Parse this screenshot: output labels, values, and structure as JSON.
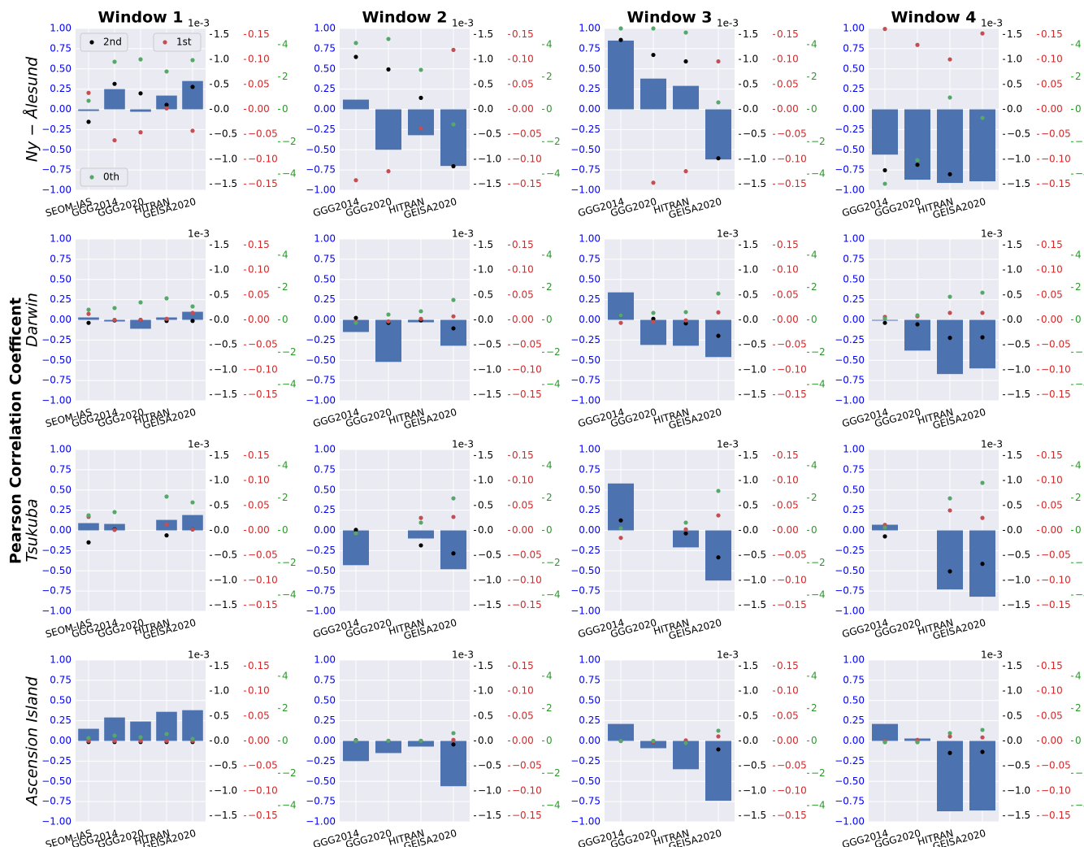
{
  "figure": {
    "column_titles": [
      "Window 1",
      "Window 2",
      "Window 3",
      "Window 4"
    ],
    "row_labels": [
      "Ny − Ålesund",
      "Darwin",
      "Tsukuba",
      "Ascension Island"
    ],
    "ylabel": "Pearson Correlation Coefficent",
    "ylim": [
      -1,
      1
    ],
    "yticks": [
      {
        "value": -1,
        "label": "−1.00"
      },
      {
        "value": -0.75,
        "label": "−0.75"
      },
      {
        "value": -0.5,
        "label": "−0.50"
      },
      {
        "value": -0.25,
        "label": "−0.25"
      },
      {
        "value": 0,
        "label": "0.00"
      },
      {
        "value": 0.25,
        "label": "0.25"
      },
      {
        "value": 0.5,
        "label": "0.50"
      },
      {
        "value": 0.75,
        "label": "0.75"
      },
      {
        "value": 1,
        "label": "1.00"
      }
    ],
    "y2lim": [
      -1.62,
      1.62
    ],
    "y2ticks": [
      {
        "value": -1.5,
        "label": "−1.5"
      },
      {
        "value": -1,
        "label": "−1.0"
      },
      {
        "value": -0.5,
        "label": "−0.5"
      },
      {
        "value": 0,
        "label": "0.0"
      },
      0.5,
      {
        "value": 1,
        "label": "1.0"
      },
      1.5
    ],
    "y2_offset_label": "1e-3",
    "y3lim": [
      -0.162,
      0.162
    ],
    "y3ticks": [
      {
        "value": -0.15,
        "label": "−0.15"
      },
      {
        "value": -0.1,
        "label": "−0.10"
      },
      {
        "value": -0.05,
        "label": "−0.05"
      },
      {
        "value": 0,
        "label": "0.00"
      },
      0.05,
      {
        "value": 0.1,
        "label": "0.10"
      },
      0.15
    ],
    "y4lim": [
      -5,
      5
    ],
    "y4ticks": [
      {
        "value": -4,
        "label": "−4"
      },
      {
        "value": -2,
        "label": "−2"
      },
      0,
      2,
      4
    ],
    "grid": true
  },
  "chart_data": [
    {
      "type": "bar",
      "categories": [
        "SEOM-IAS",
        "GGG2014",
        "GGG2020",
        "HITRAN",
        "GEISA2020"
      ],
      "color": "#4c72b0",
      "values": [
        -0.02,
        0.25,
        -0.03,
        0.17,
        0.35
      ],
      "series": [
        {
          "name": "2nd",
          "color": "#000000",
          "axis": "y2",
          "values": [
            -0.25,
            0.51,
            0.32,
            0.09,
            0.45
          ]
        },
        {
          "name": "1st",
          "color": "#c44e52",
          "axis": "y3",
          "values": [
            0.033,
            -0.062,
            -0.046,
            0.002,
            -0.043
          ]
        },
        {
          "name": "0th",
          "color": "#55a868",
          "axis": "y4",
          "values": [
            0.53,
            2.94,
            3.09,
            2.34,
            3.04
          ]
        }
      ]
    },
    {
      "type": "bar",
      "categories": [
        "GGG2014",
        "GGG2020",
        "HITRAN",
        "GEISA2020"
      ],
      "color": "#4c72b0",
      "values": [
        0.12,
        -0.5,
        -0.32,
        -0.7
      ],
      "series": [
        {
          "color": "#000000",
          "axis": "y2",
          "values": [
            1.05,
            0.8,
            0.23,
            -1.14
          ]
        },
        {
          "color": "#c44e52",
          "axis": "y3",
          "values": [
            -0.142,
            -0.124,
            -0.038,
            0.119
          ]
        },
        {
          "color": "#55a868",
          "axis": "y4",
          "values": [
            4.1,
            4.35,
            2.44,
            -0.93
          ]
        }
      ]
    },
    {
      "type": "bar",
      "categories": [
        "GGG2014",
        "GGG2020",
        "HITRAN",
        "GEISA2020"
      ],
      "color": "#4c72b0",
      "values": [
        0.85,
        0.38,
        0.29,
        -0.62
      ],
      "series": [
        {
          "color": "#000000",
          "axis": "y2",
          "values": [
            1.39,
            1.09,
            0.96,
            -0.98
          ]
        },
        {
          "color": "#c44e52",
          "axis": "y3",
          "values": [
            null,
            -0.147,
            -0.124,
            0.096
          ]
        },
        {
          "color": "#55a868",
          "axis": "y4",
          "values": [
            5.0,
            5.0,
            4.75,
            0.43
          ]
        }
      ]
    },
    {
      "type": "bar",
      "categories": [
        "GGG2014",
        "GGG2020",
        "HITRAN",
        "GEISA2020"
      ],
      "color": "#4c72b0",
      "values": [
        -0.56,
        -0.87,
        -0.91,
        -0.89
      ],
      "series": [
        {
          "color": "#000000",
          "axis": "y2",
          "values": [
            -1.22,
            -1.11,
            -1.3,
            null
          ]
        },
        {
          "color": "#c44e52",
          "axis": "y3",
          "values": [
            0.161,
            0.129,
            0.1,
            0.152
          ]
        },
        {
          "color": "#55a868",
          "axis": "y4",
          "values": [
            -4.6,
            -3.14,
            0.73,
            -0.53
          ]
        }
      ]
    },
    {
      "type": "bar",
      "categories": [
        "SEOM-IAS",
        "GGG2014",
        "GGG2020",
        "HITRAN",
        "GEISA2020"
      ],
      "color": "#4c72b0",
      "values": [
        0.03,
        -0.02,
        -0.11,
        0.03,
        0.1
      ],
      "series": [
        {
          "color": "#000000",
          "axis": "y2",
          "values": [
            -0.06,
            -0.01,
            0,
            -0.02,
            -0.02
          ]
        },
        {
          "color": "#c44e52",
          "axis": "y3",
          "values": [
            0.012,
            0,
            0,
            0.002,
            0.014
          ]
        },
        {
          "color": "#55a868",
          "axis": "y4",
          "values": [
            0.63,
            0.73,
            1.08,
            1.33,
            0.83
          ]
        }
      ]
    },
    {
      "type": "bar",
      "categories": [
        "GGG2014",
        "GGG2020",
        "HITRAN",
        "GEISA2020"
      ],
      "color": "#4c72b0",
      "values": [
        -0.15,
        -0.52,
        -0.03,
        -0.32
      ],
      "series": [
        {
          "color": "#000000",
          "axis": "y2",
          "values": [
            0.04,
            -0.06,
            -0.01,
            -0.17
          ]
        },
        {
          "color": "#c44e52",
          "axis": "y3",
          "values": [
            -0.004,
            -0.003,
            0.002,
            0.007
          ]
        },
        {
          "color": "#55a868",
          "axis": "y4",
          "values": [
            -0.18,
            0.33,
            0.53,
            1.23
          ]
        }
      ]
    },
    {
      "type": "bar",
      "categories": [
        "GGG2014",
        "GGG2020",
        "HITRAN",
        "GEISA2020"
      ],
      "color": "#4c72b0",
      "values": [
        0.34,
        -0.31,
        -0.32,
        -0.46
      ],
      "series": [
        {
          "color": "#000000",
          "axis": "y2",
          "values": [
            0.09,
            0.02,
            -0.07,
            -0.32
          ]
        },
        {
          "color": "#c44e52",
          "axis": "y3",
          "values": [
            -0.006,
            -0.004,
            -0.001,
            0.015
          ]
        },
        {
          "color": "#55a868",
          "axis": "y4",
          "values": [
            0.28,
            0.43,
            0.48,
            1.63
          ]
        }
      ]
    },
    {
      "type": "bar",
      "categories": [
        "GGG2014",
        "GGG2020",
        "HITRAN",
        "GEISA2020"
      ],
      "color": "#4c72b0",
      "values": [
        -0.01,
        -0.38,
        -0.67,
        -0.6
      ],
      "series": [
        {
          "color": "#000000",
          "axis": "y2",
          "values": [
            -0.06,
            -0.09,
            -0.36,
            -0.35
          ]
        },
        {
          "color": "#c44e52",
          "axis": "y3",
          "values": [
            0.006,
            0.007,
            0.014,
            0.014
          ]
        },
        {
          "color": "#55a868",
          "axis": "y4",
          "values": [
            0.08,
            0.28,
            1.43,
            1.68
          ]
        }
      ]
    },
    {
      "type": "bar",
      "categories": [
        "SEOM-IAS",
        "GGG2014",
        "GGG2020",
        "HITRAN",
        "GEISA2020"
      ],
      "color": "#4c72b0",
      "values": [
        0.09,
        0.08,
        null,
        0.13,
        0.19
      ],
      "series": [
        {
          "color": "#000000",
          "axis": "y2",
          "values": [
            -0.24,
            0.02,
            null,
            -0.1,
            0.02
          ]
        },
        {
          "color": "#c44e52",
          "axis": "y3",
          "values": [
            0.027,
            0.001,
            null,
            0.012,
            0.002
          ]
        },
        {
          "color": "#55a868",
          "axis": "y4",
          "values": [
            0.93,
            1.13,
            null,
            2.09,
            1.73
          ]
        }
      ]
    },
    {
      "type": "bar",
      "categories": [
        "GGG2014",
        "GGG2020",
        "HITRAN",
        "GEISA2020"
      ],
      "color": "#4c72b0",
      "values": [
        -0.43,
        null,
        -0.1,
        -0.48
      ],
      "series": [
        {
          "color": "#000000",
          "axis": "y2",
          "values": [
            0.01,
            null,
            -0.3,
            -0.46
          ]
        },
        {
          "color": "#c44e52",
          "axis": "y3",
          "values": [
            -0.006,
            null,
            0.025,
            0.027
          ]
        },
        {
          "color": "#55a868",
          "axis": "y4",
          "values": [
            -0.18,
            null,
            0.48,
            1.98
          ]
        }
      ]
    },
    {
      "type": "bar",
      "categories": [
        "GGG2014",
        "GGG2020",
        "HITRAN",
        "GEISA2020"
      ],
      "color": "#4c72b0",
      "values": [
        0.58,
        null,
        -0.21,
        -0.62
      ],
      "series": [
        {
          "color": "#000000",
          "axis": "y2",
          "values": [
            0.2,
            null,
            -0.06,
            -0.54
          ]
        },
        {
          "color": "#c44e52",
          "axis": "y3",
          "values": [
            -0.015,
            null,
            0.002,
            0.03
          ]
        },
        {
          "color": "#55a868",
          "axis": "y4",
          "values": [
            0.13,
            null,
            0.48,
            2.44
          ]
        }
      ]
    },
    {
      "type": "bar",
      "categories": [
        "GGG2014",
        "GGG2020",
        "HITRAN",
        "GEISA2020"
      ],
      "color": "#4c72b0",
      "values": [
        0.07,
        null,
        -0.73,
        -0.82
      ],
      "series": [
        {
          "color": "#000000",
          "axis": "y2",
          "values": [
            -0.12,
            null,
            -0.82,
            -0.67
          ]
        },
        {
          "color": "#c44e52",
          "axis": "y3",
          "values": [
            0.011,
            null,
            0.04,
            0.025
          ]
        },
        {
          "color": "#55a868",
          "axis": "y4",
          "values": [
            0.18,
            null,
            1.98,
            2.94
          ]
        }
      ]
    },
    {
      "type": "bar",
      "categories": [
        "SEOM-IAS",
        "GGG2014",
        "GGG2020",
        "HITRAN",
        "GEISA2020"
      ],
      "color": "#4c72b0",
      "values": [
        0.15,
        0.29,
        0.24,
        0.36,
        0.38
      ],
      "series": [
        {
          "color": "#000000",
          "axis": "y2",
          "values": [
            -0.02,
            -0.02,
            -0.02,
            -0.02,
            -0.02
          ]
        },
        {
          "color": "#c44e52",
          "axis": "y3",
          "values": [
            0,
            0,
            0,
            0,
            0
          ]
        },
        {
          "color": "#55a868",
          "axis": "y4",
          "values": [
            0.18,
            0.33,
            0.23,
            0.43,
            0.13
          ]
        }
      ]
    },
    {
      "type": "bar",
      "categories": [
        "GGG2014",
        "GGG2020",
        "HITRAN",
        "GEISA2020"
      ],
      "color": "#4c72b0",
      "values": [
        -0.25,
        -0.15,
        -0.07,
        -0.56
      ],
      "series": [
        {
          "color": "#000000",
          "axis": "y2",
          "values": [
            0.01,
            0,
            0,
            -0.07
          ]
        },
        {
          "color": "#c44e52",
          "axis": "y3",
          "values": [
            0,
            0,
            0,
            0.002
          ]
        },
        {
          "color": "#55a868",
          "axis": "y4",
          "values": [
            0,
            0,
            0,
            0.48
          ]
        }
      ]
    },
    {
      "type": "bar",
      "categories": [
        "GGG2014",
        "GGG2020",
        "HITRAN",
        "GEISA2020"
      ],
      "color": "#4c72b0",
      "values": [
        0.21,
        -0.09,
        -0.35,
        -0.74
      ],
      "series": [
        {
          "color": "#000000",
          "axis": "y2",
          "values": [
            0,
            -0.02,
            -0.04,
            -0.17
          ]
        },
        {
          "color": "#c44e52",
          "axis": "y3",
          "values": [
            0,
            -0.002,
            0.001,
            0.009
          ]
        },
        {
          "color": "#55a868",
          "axis": "y4",
          "values": [
            0,
            0,
            -0.13,
            0.63
          ]
        }
      ]
    },
    {
      "type": "bar",
      "categories": [
        "GGG2014",
        "GGG2020",
        "HITRAN",
        "GEISA2020"
      ],
      "color": "#4c72b0",
      "values": [
        0.21,
        0.03,
        -0.87,
        -0.86
      ],
      "series": [
        {
          "color": "#000000",
          "axis": "y2",
          "values": [
            -0.02,
            -0.02,
            -0.24,
            -0.22
          ]
        },
        {
          "color": "#c44e52",
          "axis": "y3",
          "values": [
            0,
            0.002,
            0.009,
            0.007
          ]
        },
        {
          "color": "#55a868",
          "axis": "y4",
          "values": [
            -0.08,
            -0.08,
            0.48,
            0.68
          ]
        }
      ]
    }
  ]
}
